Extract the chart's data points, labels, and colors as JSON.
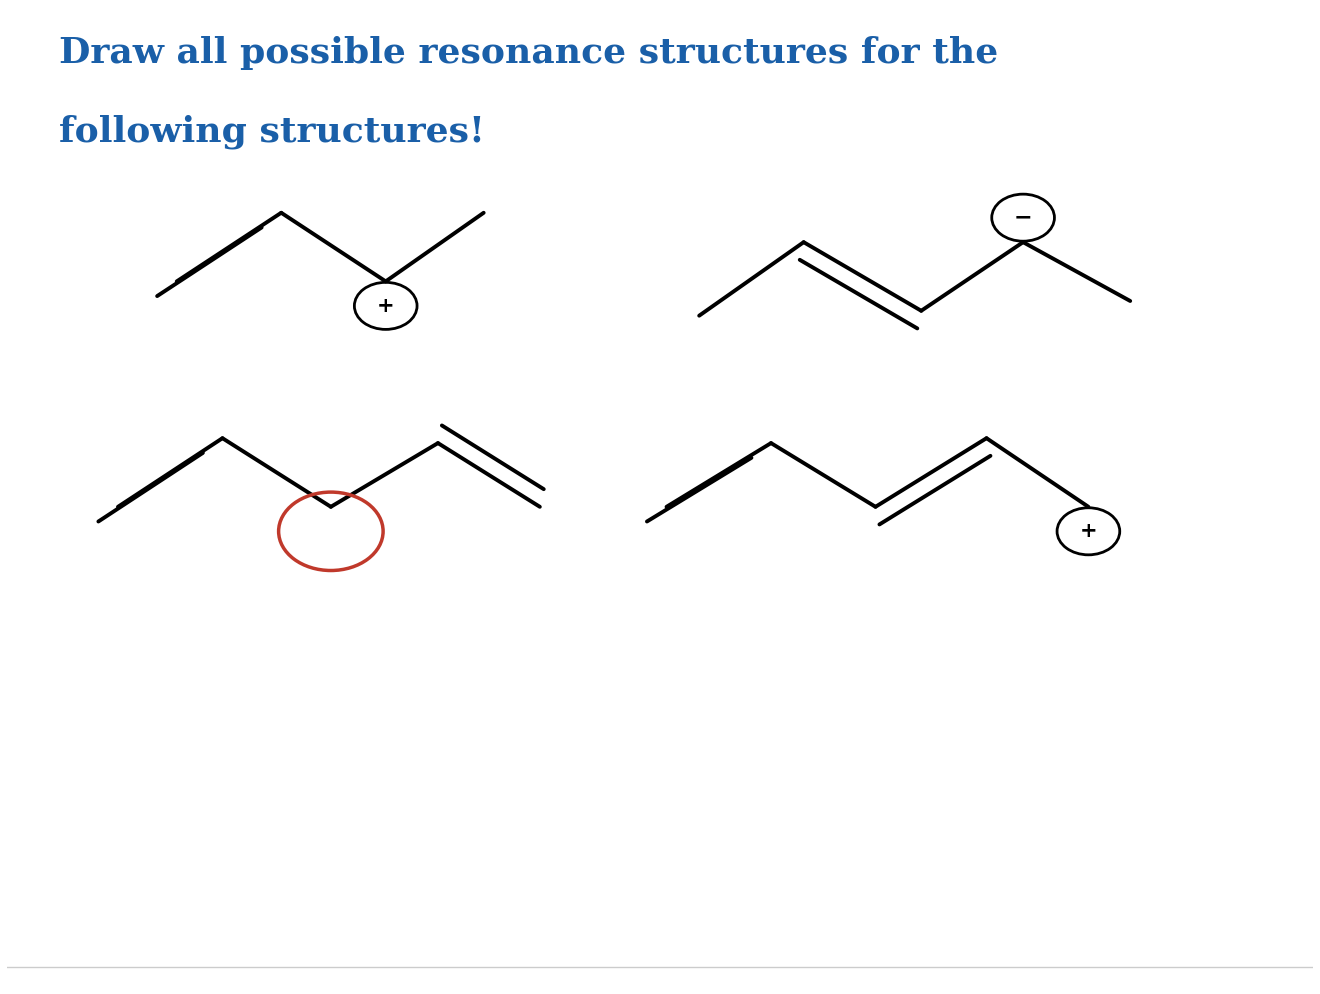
{
  "title_line1": "Draw all possible resonance structures for the",
  "title_line2": "following structures!",
  "title_color": "#1a5fa8",
  "title_fontsize": 26,
  "bg_color": "#ffffff"
}
